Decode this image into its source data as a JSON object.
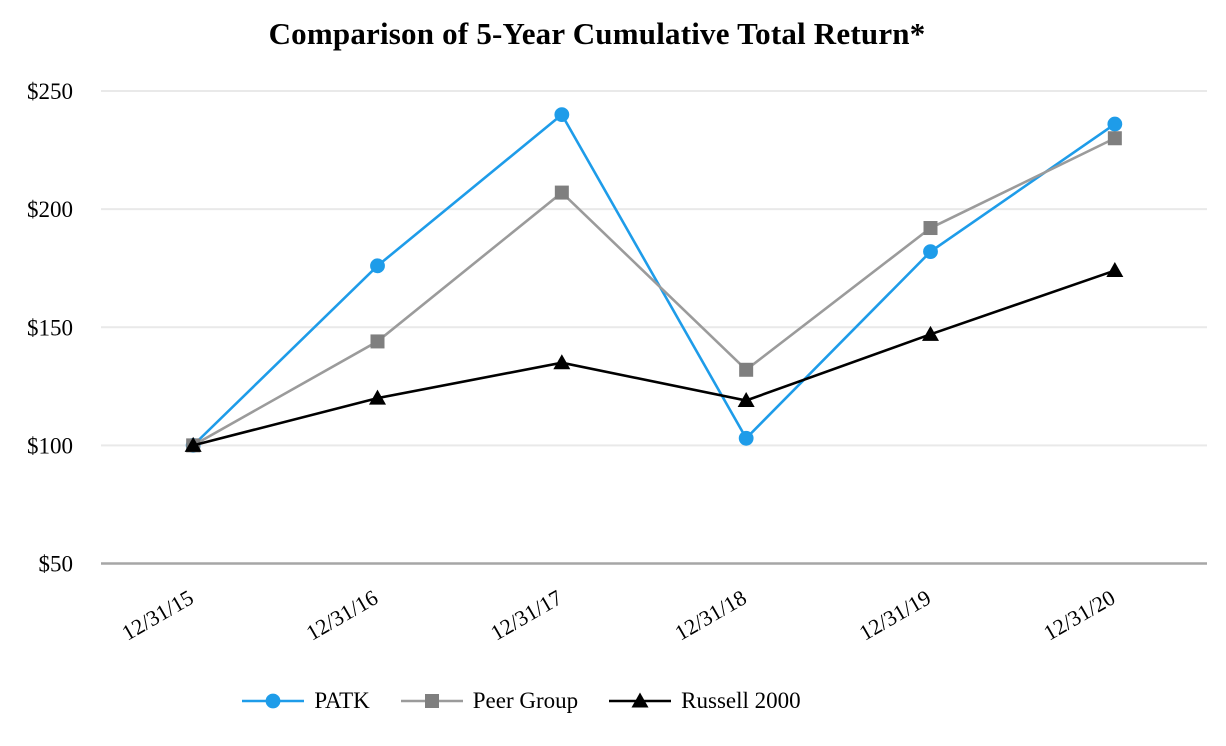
{
  "chart_data": {
    "type": "line",
    "title": "Comparison of 5-Year Cumulative Total Return*",
    "categories": [
      "12/31/15",
      "12/31/16",
      "12/31/17",
      "12/31/18",
      "12/31/19",
      "12/31/20"
    ],
    "series": [
      {
        "name": "PATK",
        "marker": "circle",
        "color": "#1E9CE9",
        "line_color": "#1E9CE9",
        "values": [
          100,
          176,
          240,
          103,
          182,
          236
        ]
      },
      {
        "name": "Peer Group",
        "marker": "square",
        "color": "#7F7F7F",
        "line_color": "#9B9B9B",
        "values": [
          100,
          144,
          207,
          132,
          192,
          230
        ]
      },
      {
        "name": "Russell 2000",
        "marker": "triangle",
        "color": "#000000",
        "line_color": "#000000",
        "values": [
          100,
          120,
          135,
          119,
          147,
          174
        ]
      }
    ],
    "y_axis": {
      "min": 50,
      "max": 250,
      "step": 50,
      "tick_prefix": "$",
      "tick_labels": [
        "$250",
        "$200",
        "$150",
        "$100",
        "$50"
      ]
    },
    "x_label_rotation_deg": -30,
    "grid": "horizontal",
    "legend_position": "bottom",
    "gridline_color": "#E9E9E9",
    "axis_line_color": "#A6A6A6",
    "background_color": "#FFFFFF"
  }
}
